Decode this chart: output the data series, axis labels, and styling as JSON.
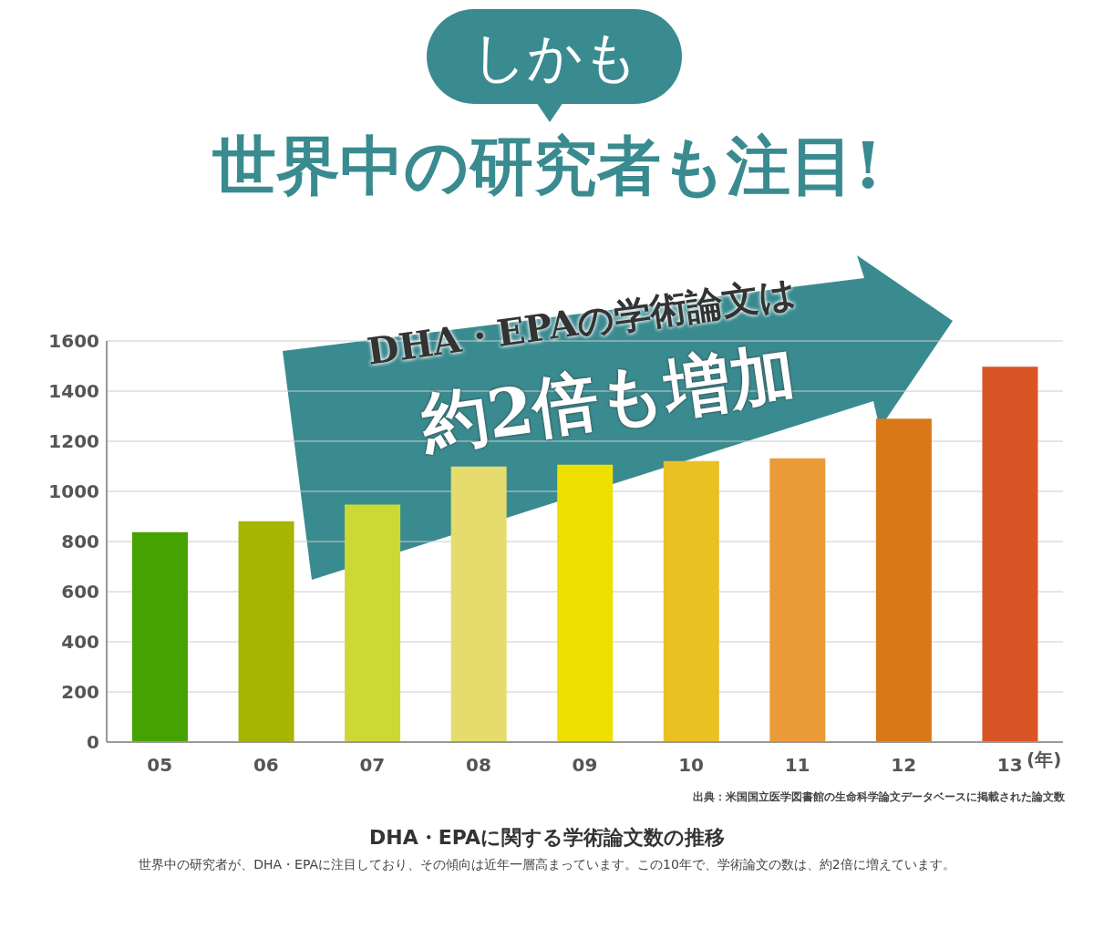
{
  "chart_data": {
    "type": "bar",
    "title": "世界中の研究者も注目!",
    "subtitle": "DHA・EPAに関する学術論文数の推移",
    "xlabel": "(年)",
    "categories": [
      "05",
      "06",
      "07",
      "08",
      "09",
      "10",
      "11",
      "12",
      "13"
    ],
    "values": [
      837,
      881,
      947,
      1099,
      1106,
      1121,
      1132,
      1290,
      1497
    ],
    "colors": [
      "#46a200",
      "#a5b500",
      "#ccd935",
      "#e5dc6d",
      "#ede000",
      "#ebc023",
      "#ea9a36",
      "#d87818",
      "#d95525"
    ],
    "ylim": [
      0,
      1600
    ],
    "yticks": [
      0,
      200,
      400,
      600,
      800,
      1000,
      1200,
      1400,
      1600
    ],
    "grid": "y",
    "annotations": [
      "しかも",
      "DHA・EPAの学術論文は",
      "約2倍も増加",
      "出典：米国国立医学図書館の生命科学論文データベースに掲載された論文数",
      "世界中の研究者が、DHA・EPAに注目しており、その傾向は近年一層高まっています。この10年で、学術論文の数は、約2倍に増えています。"
    ]
  }
}
